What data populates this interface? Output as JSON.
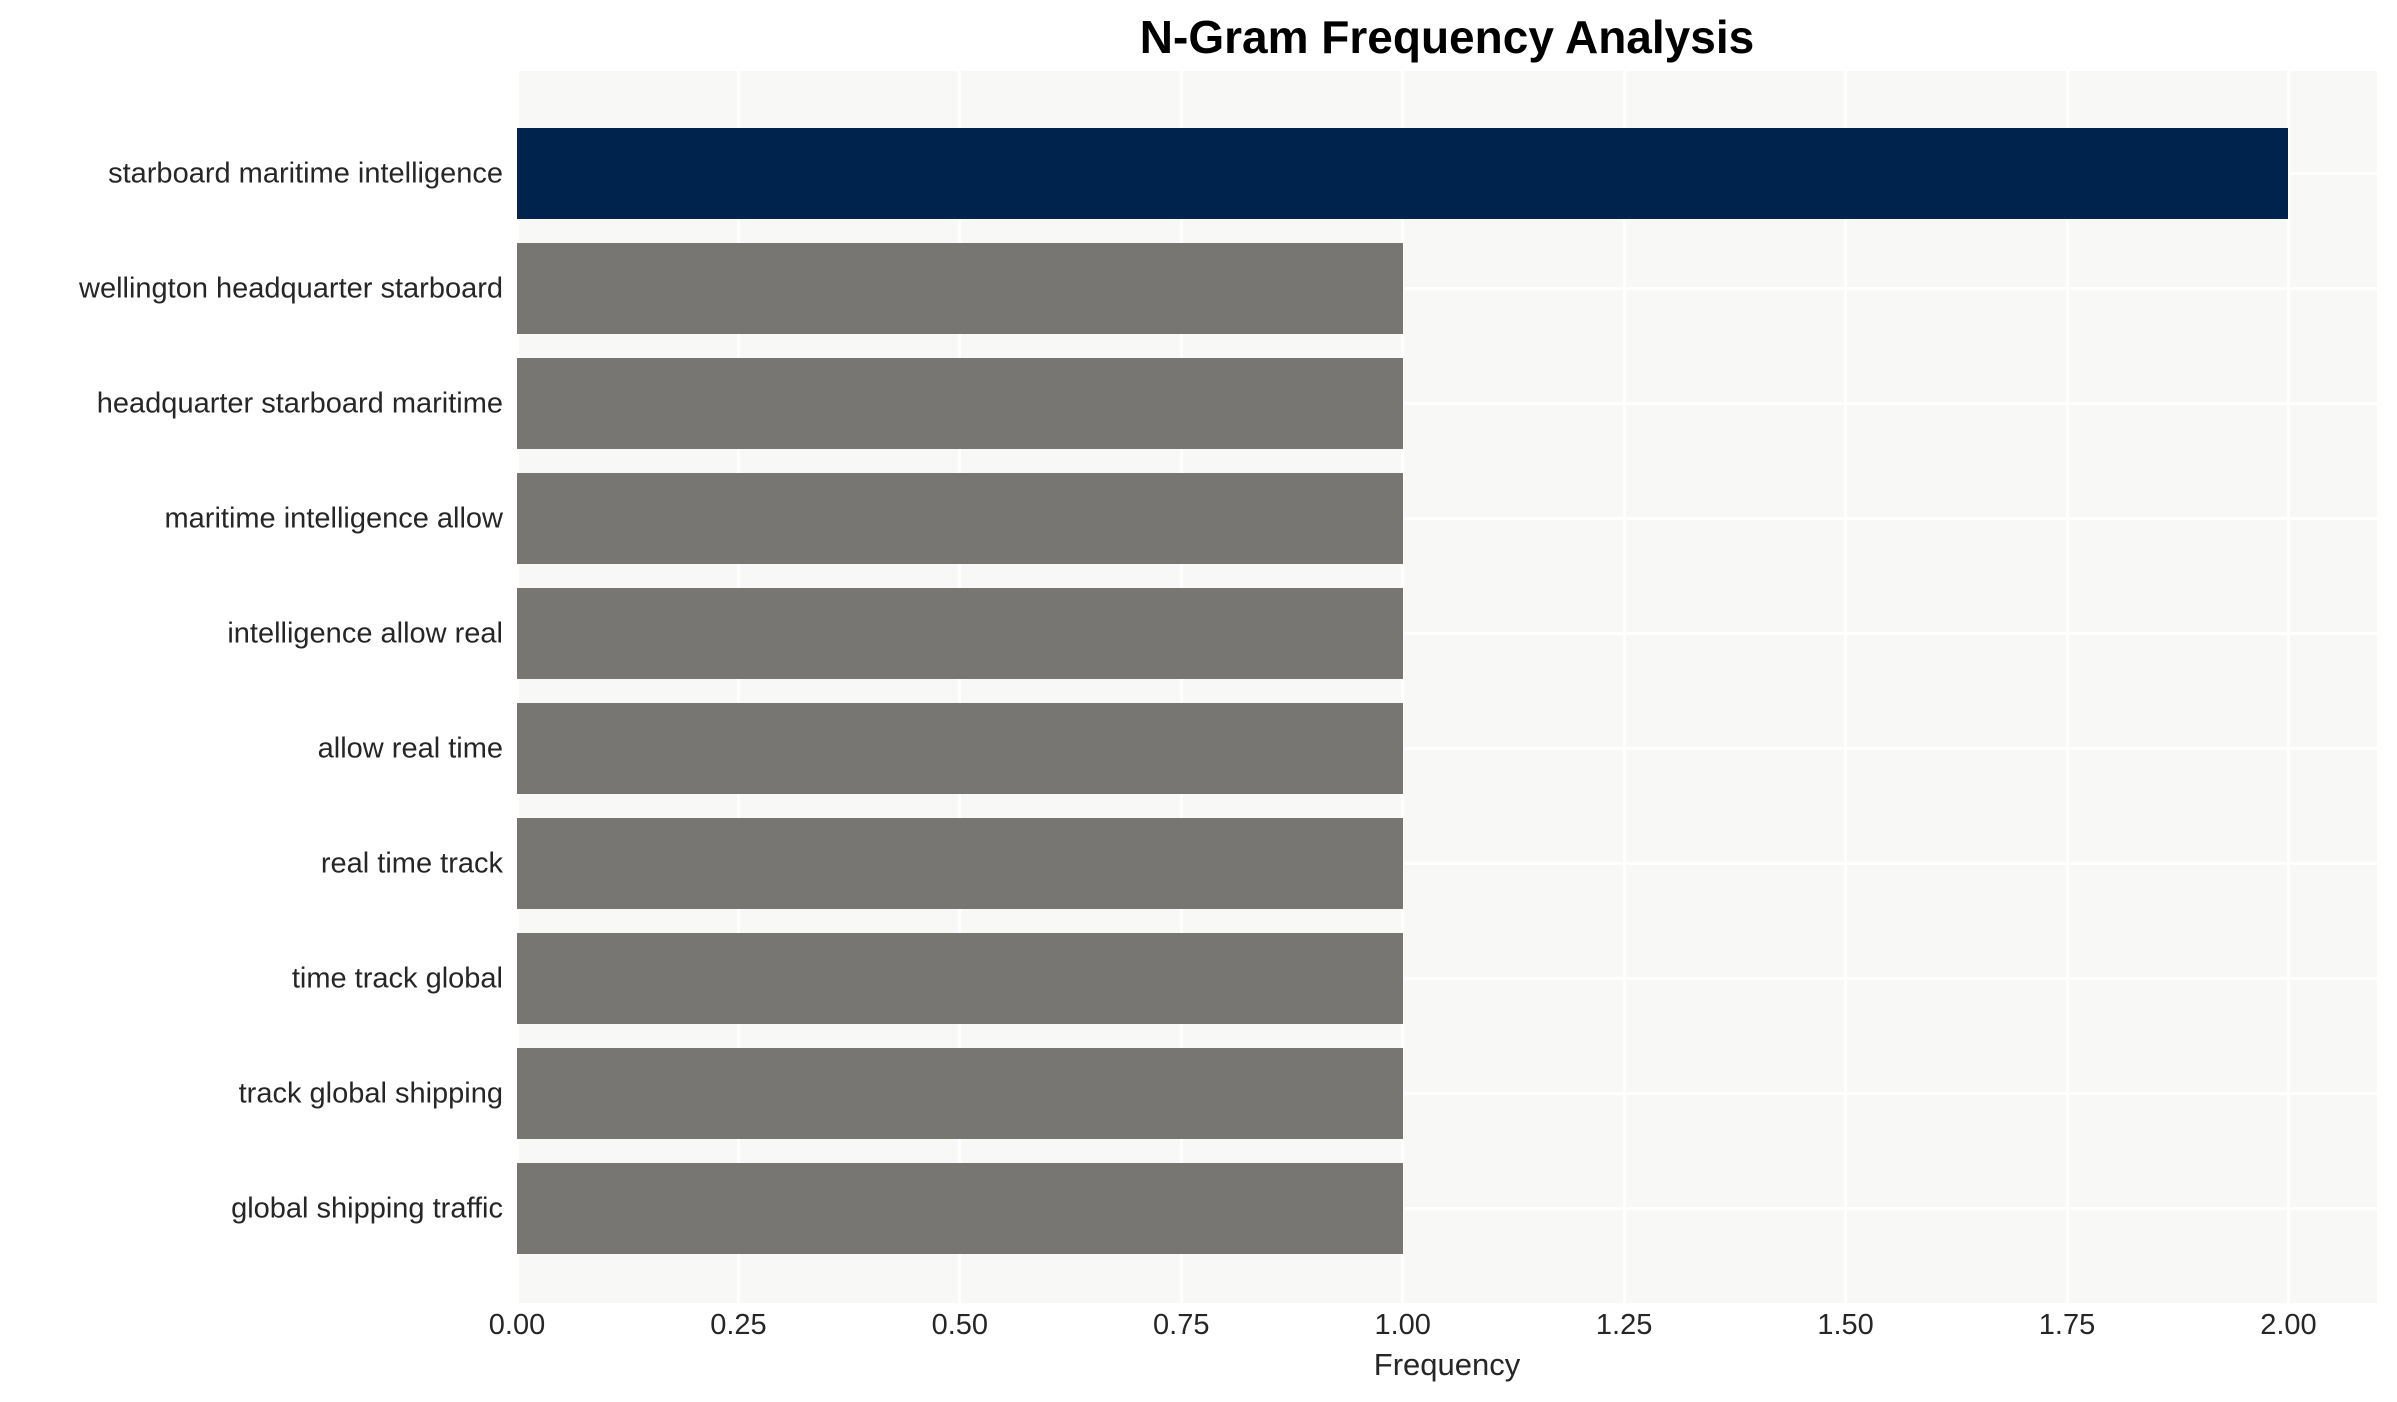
{
  "chart_data": {
    "type": "bar",
    "orientation": "horizontal",
    "title": "N-Gram Frequency Analysis",
    "xlabel": "Frequency",
    "ylabel": "",
    "categories": [
      "starboard maritime intelligence",
      "wellington headquarter starboard",
      "headquarter starboard maritime",
      "maritime intelligence allow",
      "intelligence allow real",
      "allow real time",
      "real time track",
      "time track global",
      "track global shipping",
      "global shipping traffic"
    ],
    "values": [
      2,
      1,
      1,
      1,
      1,
      1,
      1,
      1,
      1,
      1
    ],
    "bar_colors": [
      "#00234E",
      "#787672",
      "#787672",
      "#787672",
      "#787672",
      "#787672",
      "#787672",
      "#787672",
      "#787672",
      "#787672"
    ],
    "xticks": [
      {
        "value": 0.0,
        "label": "0.00"
      },
      {
        "value": 0.25,
        "label": "0.25"
      },
      {
        "value": 0.5,
        "label": "0.50"
      },
      {
        "value": 0.75,
        "label": "0.75"
      },
      {
        "value": 1.0,
        "label": "1.00"
      },
      {
        "value": 1.25,
        "label": "1.25"
      },
      {
        "value": 1.5,
        "label": "1.50"
      },
      {
        "value": 1.75,
        "label": "1.75"
      },
      {
        "value": 2.0,
        "label": "2.00"
      }
    ],
    "xlim": [
      0,
      2.1
    ],
    "grid": "on",
    "grid_style": "white major vertical lines at x ticks, white horizontal lines at category centers",
    "legend_position": "none",
    "colors": {
      "highlight_bar": "#00234E",
      "default_bar": "#787672",
      "plot_background": "#F8F8F7",
      "gridline": "#FFFFFF",
      "tick_text": "#262626",
      "title_text": "#000000"
    }
  }
}
